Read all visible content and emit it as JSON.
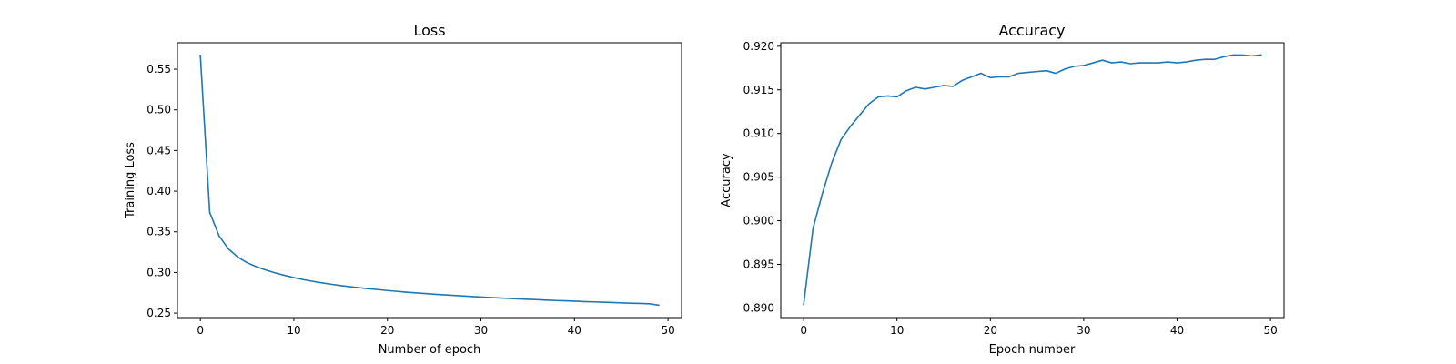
{
  "colors": {
    "series": "#1f77b4"
  },
  "chart_data": [
    {
      "type": "line",
      "title": "Loss",
      "xlabel": "Number of epoch",
      "ylabel": "Training Loss",
      "xlim": [
        -2.45,
        51.45
      ],
      "ylim": [
        0.2445,
        0.5825
      ],
      "xticks": [
        0,
        10,
        20,
        30,
        40,
        50
      ],
      "xtick_labels": [
        "0",
        "10",
        "20",
        "30",
        "40",
        "50"
      ],
      "yticks": [
        0.25,
        0.3,
        0.35,
        0.4,
        0.45,
        0.5,
        0.55
      ],
      "ytick_labels": [
        "0.25",
        "0.30",
        "0.35",
        "0.40",
        "0.45",
        "0.50",
        "0.55"
      ],
      "grid": false,
      "series": [
        {
          "x": [
            0,
            1,
            2,
            3,
            4,
            5,
            6,
            7,
            8,
            9,
            10,
            11,
            12,
            13,
            14,
            15,
            16,
            17,
            18,
            19,
            20,
            21,
            22,
            23,
            24,
            25,
            26,
            27,
            28,
            29,
            30,
            31,
            32,
            33,
            34,
            35,
            36,
            37,
            38,
            39,
            40,
            41,
            42,
            43,
            44,
            45,
            46,
            47,
            48,
            49
          ],
          "values": [
            0.567,
            0.374,
            0.345,
            0.329,
            0.319,
            0.312,
            0.307,
            0.303,
            0.2995,
            0.2965,
            0.2937,
            0.2912,
            0.2891,
            0.2872,
            0.2855,
            0.2839,
            0.2825,
            0.2812,
            0.28,
            0.2789,
            0.2778,
            0.2768,
            0.2758,
            0.2749,
            0.2741,
            0.2733,
            0.2725,
            0.2718,
            0.2711,
            0.2704,
            0.2698,
            0.2692,
            0.2686,
            0.268,
            0.2675,
            0.267,
            0.2665,
            0.266,
            0.2655,
            0.2651,
            0.2647,
            0.2642,
            0.2638,
            0.2634,
            0.263,
            0.2626,
            0.2622,
            0.2619,
            0.2615,
            0.2598
          ]
        }
      ]
    },
    {
      "type": "line",
      "title": "Accuracy",
      "xlabel": "Epoch number",
      "ylabel": "Accuracy",
      "xlim": [
        -2.45,
        51.45
      ],
      "ylim": [
        0.8889,
        0.9204
      ],
      "xticks": [
        0,
        10,
        20,
        30,
        40,
        50
      ],
      "xtick_labels": [
        "0",
        "10",
        "20",
        "30",
        "40",
        "50"
      ],
      "yticks": [
        0.89,
        0.895,
        0.9,
        0.905,
        0.91,
        0.915,
        0.92
      ],
      "ytick_labels": [
        "0.890",
        "0.895",
        "0.900",
        "0.905",
        "0.910",
        "0.915",
        "0.920"
      ],
      "grid": false,
      "series": [
        {
          "x": [
            0,
            1,
            2,
            3,
            4,
            5,
            6,
            7,
            8,
            9,
            10,
            11,
            12,
            13,
            14,
            15,
            16,
            17,
            18,
            19,
            20,
            21,
            22,
            23,
            24,
            25,
            26,
            27,
            28,
            29,
            30,
            31,
            32,
            33,
            34,
            35,
            36,
            37,
            38,
            39,
            40,
            41,
            42,
            43,
            44,
            45,
            46,
            47,
            48,
            49
          ],
          "values": [
            0.8904,
            0.8991,
            0.9031,
            0.9066,
            0.9093,
            0.9108,
            0.9121,
            0.9134,
            0.9142,
            0.9143,
            0.9142,
            0.9149,
            0.9153,
            0.9151,
            0.9153,
            0.9155,
            0.9154,
            0.9161,
            0.9165,
            0.9169,
            0.9164,
            0.9165,
            0.9165,
            0.9169,
            0.917,
            0.9171,
            0.9172,
            0.9169,
            0.9174,
            0.9177,
            0.9178,
            0.9181,
            0.9184,
            0.9181,
            0.9182,
            0.918,
            0.9181,
            0.9181,
            0.9181,
            0.9182,
            0.9181,
            0.9182,
            0.9184,
            0.9185,
            0.9185,
            0.9188,
            0.919,
            0.919,
            0.9189,
            0.919
          ]
        }
      ]
    }
  ]
}
